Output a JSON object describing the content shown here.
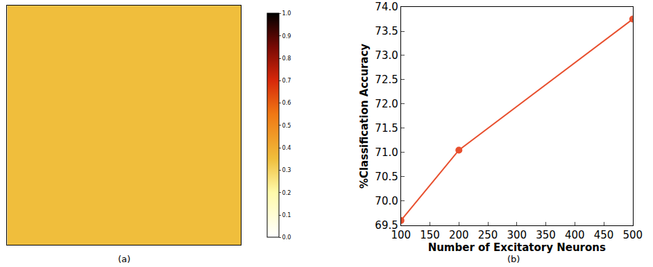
{
  "chart_data": [
    {
      "type": "heatmap",
      "caption": "(a)",
      "tick_labels": false,
      "z": [
        [
          0.35,
          0.35,
          0.35,
          0.35,
          0.35,
          0.35,
          0.35,
          0.35,
          0.35,
          0.35,
          0.35,
          0.35
        ],
        [
          0.35,
          0.35,
          0.35,
          0.35,
          0.35,
          0.35,
          0.35,
          0.35,
          0.35,
          0.35,
          0.35,
          0.35
        ],
        [
          0.35,
          0.35,
          0.35,
          0.35,
          0.35,
          0.35,
          0.35,
          0.35,
          0.35,
          0.35,
          0.35,
          0.35
        ],
        [
          0.35,
          0.35,
          0.35,
          0.35,
          0.35,
          0.35,
          0.35,
          0.35,
          0.35,
          0.35,
          0.35,
          0.35
        ],
        [
          0.35,
          0.35,
          0.35,
          0.35,
          0.35,
          0.35,
          0.35,
          0.35,
          0.35,
          0.35,
          0.35,
          0.35
        ],
        [
          0.35,
          0.35,
          0.35,
          0.35,
          0.35,
          0.35,
          0.35,
          0.35,
          0.35,
          0.35,
          0.35,
          0.35
        ],
        [
          0.35,
          0.35,
          0.35,
          0.35,
          0.35,
          0.35,
          0.35,
          0.35,
          0.35,
          0.35,
          0.35,
          0.35
        ],
        [
          0.35,
          0.35,
          0.35,
          0.35,
          0.35,
          0.35,
          0.35,
          0.35,
          0.35,
          0.35,
          0.35,
          0.35
        ],
        [
          0.35,
          0.35,
          0.35,
          0.35,
          0.35,
          0.35,
          0.35,
          0.35,
          0.35,
          0.35,
          0.35,
          0.35
        ],
        [
          0.35,
          0.35,
          0.35,
          0.35,
          0.35,
          0.35,
          0.35,
          0.35,
          0.35,
          0.35,
          0.35,
          0.35
        ],
        [
          0.35,
          0.35,
          0.35,
          0.35,
          0.35,
          0.35,
          0.35,
          0.35,
          0.35,
          0.35,
          0.35,
          0.35
        ],
        [
          0.35,
          0.35,
          0.35,
          0.35,
          0.35,
          0.35,
          0.35,
          0.35,
          0.35,
          0.35,
          0.35,
          0.35
        ]
      ],
      "zlim": [
        0,
        1
      ],
      "zticks": [
        {
          "value": 0,
          "label": "0.0"
        },
        0.1,
        0.2,
        0.3,
        0.4,
        0.5,
        0.6,
        0.7,
        0.8,
        0.9,
        {
          "value": 1,
          "label": "1.0"
        }
      ]
    },
    {
      "type": "line",
      "caption": "(b)",
      "x_label": "Number of Excitatory Neurons",
      "y_label": "%Classification Accuracy",
      "x": [
        100,
        200,
        500
      ],
      "values": [
        69.6,
        71.05,
        73.75
      ],
      "color": "#e8502f",
      "marker": "circle",
      "grid": false,
      "xlim": [
        100,
        500
      ],
      "xticks": [
        100,
        150,
        200,
        250,
        300,
        350,
        400,
        450,
        500
      ],
      "ylim": [
        69.5,
        74.0
      ],
      "yticks": [
        69.5,
        {
          "value": 70,
          "label": "70.0"
        },
        70.5,
        {
          "value": 71,
          "label": "71.0"
        },
        71.5,
        {
          "value": 72,
          "label": "72.0"
        },
        72.5,
        {
          "value": 73,
          "label": "73.0"
        },
        73.5,
        {
          "value": 74,
          "label": "74.0"
        }
      ]
    }
  ]
}
